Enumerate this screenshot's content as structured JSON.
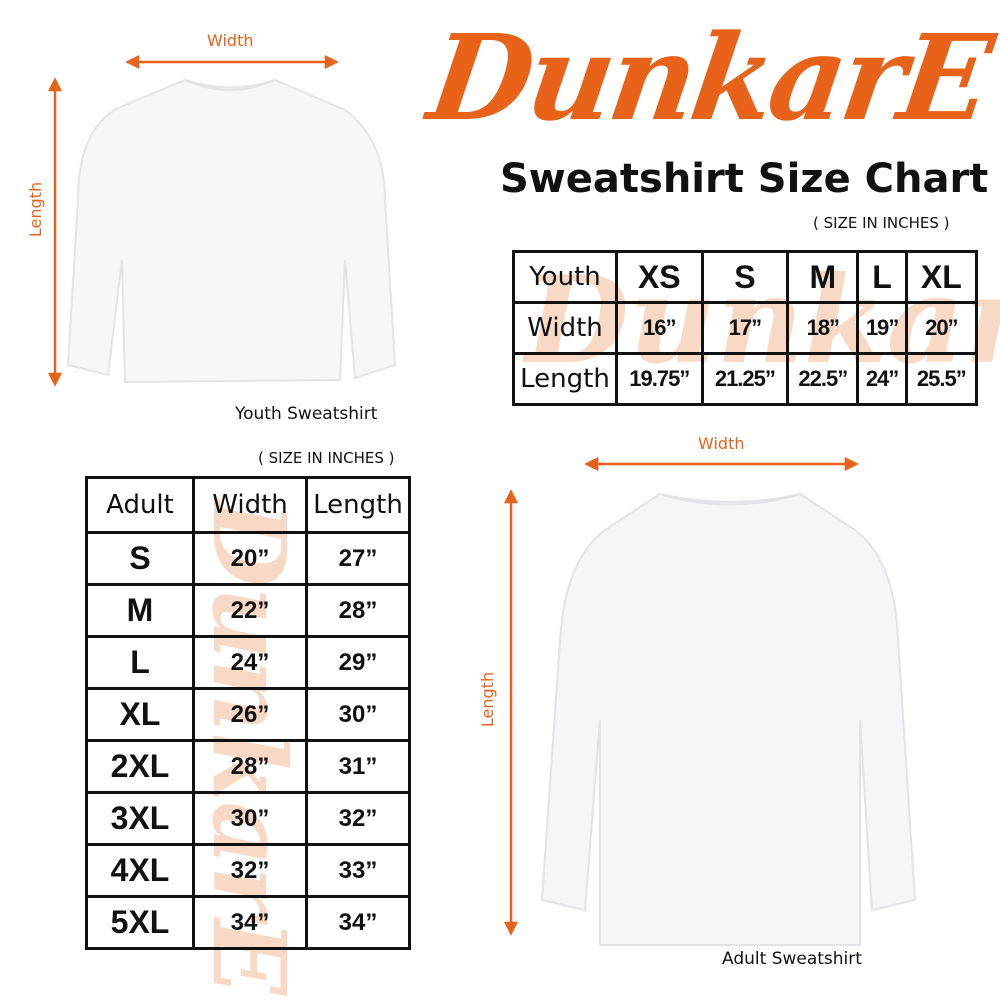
{
  "brand": {
    "logo_text": "DunkarE",
    "accent": "#e8621a"
  },
  "title": "Sweatshirt Size Chart",
  "youth": {
    "width_label": "Width",
    "length_label": "Length",
    "caption": "Youth Sweatshirt",
    "units_note": "( SIZE IN INCHES )",
    "header": [
      "Youth",
      "XS",
      "S",
      "M",
      "L",
      "XL"
    ],
    "rows": [
      {
        "label": "Width",
        "values": [
          "16”",
          "17”",
          "18”",
          "19”",
          "20”"
        ]
      },
      {
        "label": "Length",
        "values": [
          "19.75”",
          "21.25”",
          "22.5”",
          "24”",
          "25.5”"
        ]
      }
    ]
  },
  "adult": {
    "width_label": "Width",
    "length_label": "Length",
    "caption": "Adult Sweatshirt",
    "units_note": "( SIZE IN INCHES )",
    "header": [
      "Adult",
      "Width",
      "Length"
    ],
    "rows": [
      [
        "S",
        "20”",
        "27”"
      ],
      [
        "M",
        "22”",
        "28”"
      ],
      [
        "L",
        "24”",
        "29”"
      ],
      [
        "XL",
        "26”",
        "30”"
      ],
      [
        "2XL",
        "28”",
        "31”"
      ],
      [
        "3XL",
        "30”",
        "32”"
      ],
      [
        "4XL",
        "32”",
        "33”"
      ],
      [
        "5XL",
        "34”",
        "34”"
      ]
    ]
  }
}
